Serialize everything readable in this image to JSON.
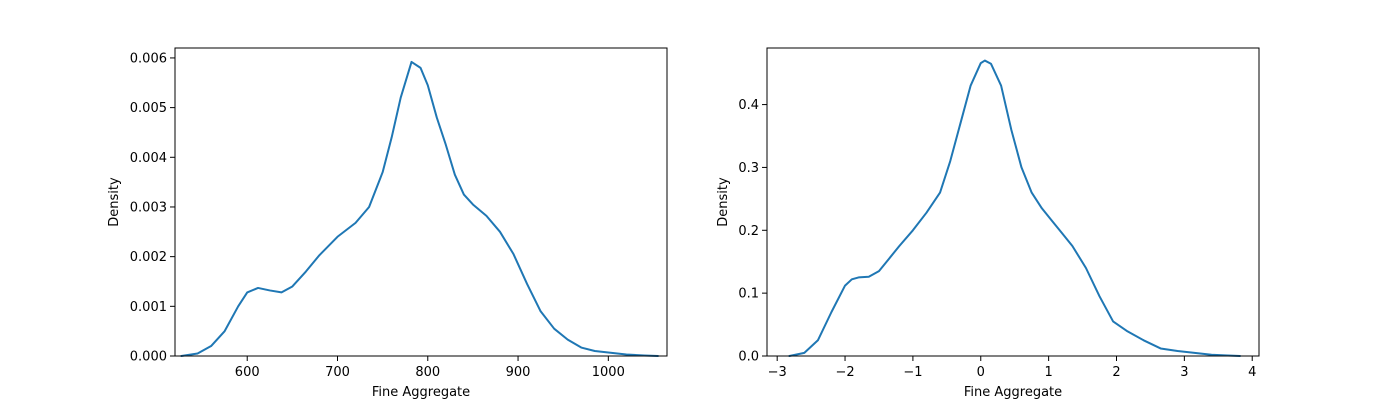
{
  "colors": {
    "line": "#1f77b4",
    "axes": "#000000",
    "background": "#ffffff"
  },
  "chart_data": [
    {
      "type": "line",
      "title": "",
      "xlabel": "Fine Aggregate",
      "ylabel": "Density",
      "xlim": [
        520,
        1065
      ],
      "ylim": [
        0,
        0.0062
      ],
      "xticks": [
        600,
        700,
        800,
        900,
        1000
      ],
      "xtick_labels": [
        "600",
        "700",
        "800",
        "900",
        "1000"
      ],
      "yticks": [
        0,
        0.001,
        0.002,
        0.003,
        0.004,
        0.005,
        0.006
      ],
      "ytick_labels": [
        "0.000",
        "0.001",
        "0.002",
        "0.003",
        "0.004",
        "0.005",
        "0.006"
      ],
      "grid": false,
      "series": [
        {
          "x": [
            527,
            545,
            560,
            575,
            590,
            600,
            612,
            625,
            638,
            650,
            665,
            680,
            700,
            720,
            735,
            750,
            760,
            770,
            782,
            792,
            800,
            810,
            820,
            830,
            840,
            850,
            865,
            880,
            895,
            910,
            925,
            940,
            955,
            970,
            985,
            1000,
            1020,
            1040,
            1055
          ],
          "y": [
            0.0,
            5e-05,
            0.0002,
            0.0005,
            0.001,
            0.00128,
            0.00137,
            0.00132,
            0.00128,
            0.0014,
            0.0017,
            0.00203,
            0.0024,
            0.00268,
            0.003,
            0.0037,
            0.0044,
            0.0052,
            0.00592,
            0.0058,
            0.00545,
            0.0048,
            0.00425,
            0.00365,
            0.00325,
            0.00305,
            0.00282,
            0.0025,
            0.00205,
            0.00145,
            0.0009,
            0.00055,
            0.00033,
            0.00017,
            0.0001,
            7e-05,
            3e-05,
            1e-05,
            0.0
          ]
        }
      ]
    },
    {
      "type": "line",
      "title": "",
      "xlabel": "Fine Aggregate",
      "ylabel": "Density",
      "xlim": [
        -3.15,
        4.1
      ],
      "ylim": [
        0,
        0.49
      ],
      "xticks": [
        -3,
        -2,
        -1,
        0,
        1,
        2,
        3,
        4
      ],
      "xtick_labels": [
        "−3",
        "−2",
        "−1",
        "0",
        "1",
        "2",
        "3",
        "4"
      ],
      "yticks": [
        0,
        0.1,
        0.2,
        0.3,
        0.4
      ],
      "ytick_labels": [
        "0.0",
        "0.1",
        "0.2",
        "0.3",
        "0.4"
      ],
      "grid": false,
      "series": [
        {
          "x": [
            -2.82,
            -2.6,
            -2.4,
            -2.2,
            -2.0,
            -1.9,
            -1.8,
            -1.65,
            -1.5,
            -1.35,
            -1.2,
            -1.0,
            -0.8,
            -0.6,
            -0.45,
            -0.3,
            -0.15,
            0.0,
            0.06,
            0.15,
            0.3,
            0.45,
            0.6,
            0.75,
            0.9,
            1.05,
            1.2,
            1.35,
            1.55,
            1.75,
            1.95,
            2.15,
            2.4,
            2.65,
            2.9,
            3.15,
            3.4,
            3.6,
            3.82
          ],
          "y": [
            0.0,
            0.005,
            0.025,
            0.07,
            0.112,
            0.122,
            0.125,
            0.126,
            0.135,
            0.155,
            0.175,
            0.2,
            0.228,
            0.26,
            0.31,
            0.37,
            0.43,
            0.466,
            0.47,
            0.465,
            0.43,
            0.36,
            0.3,
            0.26,
            0.235,
            0.215,
            0.195,
            0.175,
            0.14,
            0.095,
            0.055,
            0.04,
            0.025,
            0.012,
            0.008,
            0.005,
            0.002,
            0.001,
            0.0
          ]
        }
      ]
    }
  ]
}
